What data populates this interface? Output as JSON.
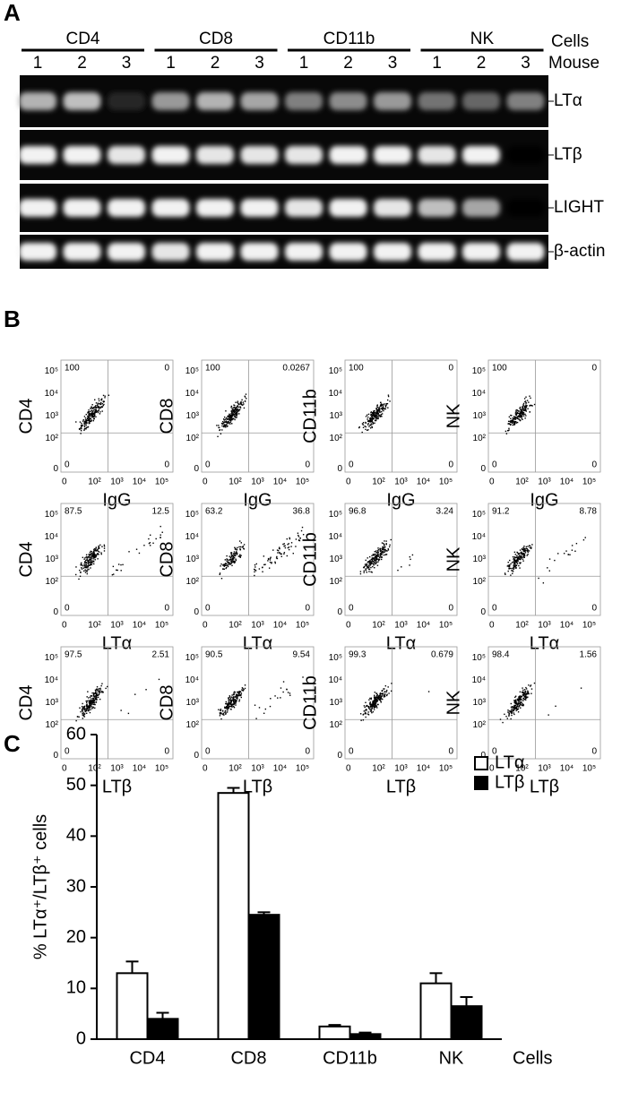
{
  "panel_a": {
    "label": "A",
    "groups": [
      "CD4",
      "CD8",
      "CD11b",
      "NK"
    ],
    "groups_title": "Cells",
    "mouse_title": "Mouse",
    "mice": [
      "1",
      "2",
      "3"
    ],
    "rows": [
      {
        "label": "LTα",
        "intensity": [
          0.7,
          0.75,
          0.15,
          0.6,
          0.7,
          0.65,
          0.5,
          0.55,
          0.6,
          0.45,
          0.4,
          0.5
        ]
      },
      {
        "label": "LTβ",
        "intensity": [
          0.95,
          0.95,
          0.9,
          0.95,
          0.9,
          0.9,
          0.9,
          0.95,
          0.95,
          0.9,
          0.95,
          0.02
        ]
      },
      {
        "label": "LIGHT",
        "intensity": [
          0.95,
          0.95,
          0.95,
          0.95,
          0.95,
          0.95,
          0.9,
          0.95,
          0.9,
          0.75,
          0.65,
          0.02
        ]
      },
      {
        "label": "β-actin",
        "intensity": [
          0.95,
          0.95,
          0.95,
          0.9,
          0.95,
          0.95,
          0.95,
          0.95,
          0.95,
          0.95,
          0.95,
          0.95
        ]
      }
    ]
  },
  "panel_b": {
    "label": "B",
    "ticks": [
      "0",
      "10²",
      "10³",
      "10⁴",
      "10⁵"
    ],
    "plots": [
      {
        "y_label": "CD4",
        "x_label": "IgG",
        "quadrants": [
          100,
          0,
          0,
          0
        ]
      },
      {
        "y_label": "CD8",
        "x_label": "IgG",
        "quadrants": [
          100,
          0.0267,
          0,
          0
        ]
      },
      {
        "y_label": "CD11b",
        "x_label": "IgG",
        "quadrants": [
          100,
          0,
          0,
          0
        ]
      },
      {
        "y_label": "NK",
        "x_label": "IgG",
        "quadrants": [
          100,
          0,
          0,
          0
        ]
      },
      {
        "y_label": "CD4",
        "x_label": "LTα",
        "quadrants": [
          87.5,
          12.5,
          0,
          0
        ]
      },
      {
        "y_label": "CD8",
        "x_label": "LTα",
        "quadrants": [
          63.2,
          36.8,
          0,
          0
        ]
      },
      {
        "y_label": "CD11b",
        "x_label": "LTα",
        "quadrants": [
          96.8,
          3.24,
          0,
          0
        ]
      },
      {
        "y_label": "NK",
        "x_label": "LTα",
        "quadrants": [
          91.2,
          8.78,
          0,
          0
        ]
      },
      {
        "y_label": "CD4",
        "x_label": "LTβ",
        "quadrants": [
          97.5,
          2.51,
          0,
          0
        ]
      },
      {
        "y_label": "CD8",
        "x_label": "LTβ",
        "quadrants": [
          90.5,
          9.54,
          0,
          0
        ]
      },
      {
        "y_label": "CD11b",
        "x_label": "LTβ",
        "quadrants": [
          99.3,
          0.679,
          0,
          0
        ]
      },
      {
        "y_label": "NK",
        "x_label": "LTβ",
        "quadrants": [
          98.4,
          1.56,
          0,
          0
        ]
      }
    ]
  },
  "chart_data": {
    "type": "bar",
    "panel_label": "C",
    "y_label": "% LTα⁺/LTβ⁺ cells",
    "x_label": "Cells",
    "categories": [
      "CD4",
      "CD8",
      "CD11b",
      "NK"
    ],
    "series": [
      {
        "name": "LTα",
        "color": "#ffffff",
        "values": [
          13,
          48.5,
          2.5,
          11
        ],
        "errors": [
          2.3,
          1,
          0.3,
          2
        ]
      },
      {
        "name": "LTβ",
        "color": "#000000",
        "values": [
          4,
          24.5,
          1,
          6.5
        ],
        "errors": [
          1.2,
          0.5,
          0.3,
          1.8
        ]
      }
    ],
    "ylim": [
      0,
      60
    ],
    "yticks": [
      0,
      10,
      20,
      30,
      40,
      50,
      60
    ],
    "legend": "top-right"
  }
}
